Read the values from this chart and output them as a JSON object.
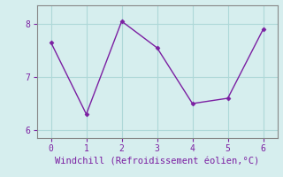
{
  "x": [
    0,
    1,
    2,
    3,
    4,
    5,
    6
  ],
  "y": [
    7.65,
    6.3,
    8.05,
    7.55,
    6.5,
    6.6,
    7.9
  ],
  "line_color": "#7b1fa2",
  "marker": "D",
  "marker_size": 2.5,
  "linewidth": 1.0,
  "xlabel": "Windchill (Refroidissement éolien,°C)",
  "xlabel_color": "#7b1fa2",
  "xlabel_fontsize": 7.5,
  "background_color": "#d6eeee",
  "grid_color": "#aed8d8",
  "tick_color": "#7b1fa2",
  "tick_fontsize": 7,
  "ylim": [
    5.85,
    8.35
  ],
  "xlim": [
    -0.4,
    6.4
  ],
  "yticks": [
    6,
    7,
    8
  ],
  "xticks": [
    0,
    1,
    2,
    3,
    4,
    5,
    6
  ],
  "spine_color": "#888888"
}
